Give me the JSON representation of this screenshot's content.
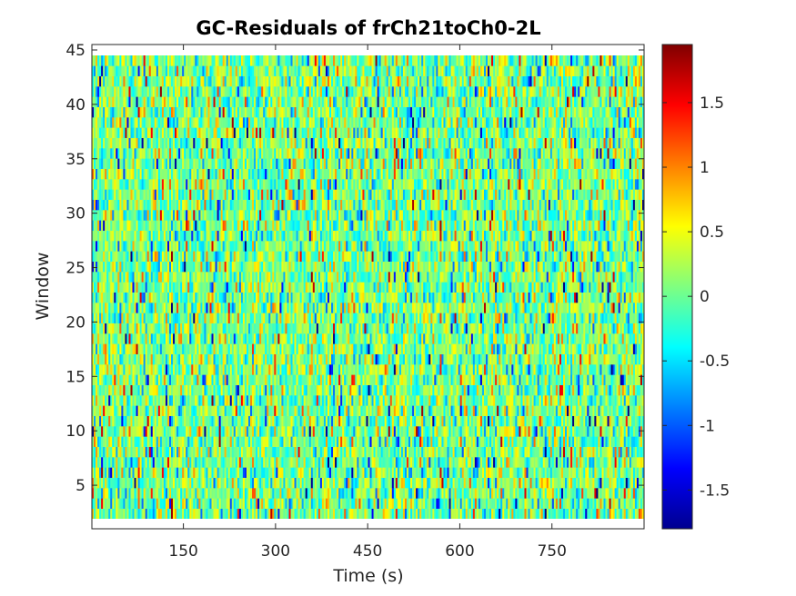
{
  "chart_data": {
    "type": "heatmap",
    "title": "GC-Residuals of frCh21toCh0-2L",
    "xlabel": "Time (s)",
    "ylabel": "Window",
    "xlim": [
      1,
      900
    ],
    "ylim": [
      1,
      45.5
    ],
    "x_ticks": [
      150,
      300,
      450,
      600,
      750
    ],
    "y_ticks": [
      5,
      10,
      15,
      20,
      25,
      30,
      35,
      40,
      45
    ],
    "colorbar": {
      "colormap": "jet",
      "clim": [
        -1.8,
        1.95
      ],
      "ticks": [
        -1.5,
        -1,
        -0.5,
        0,
        0.5,
        1,
        1.5
      ]
    },
    "grid": false,
    "n_windows": 45,
    "description_values": "random residual values mostly within -0.5 to 0.5, with scattered extremes between -1.8 and 1.95"
  }
}
